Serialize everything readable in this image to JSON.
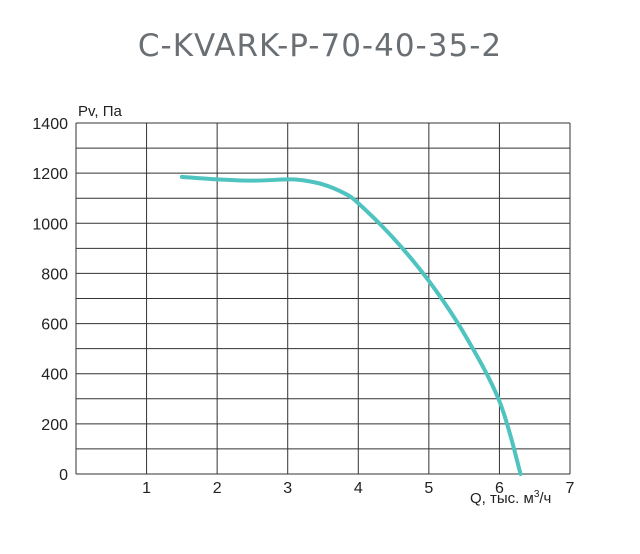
{
  "chart_data": {
    "type": "line",
    "title": "C-KVARK-P-70-40-35-2",
    "ylabel": "Pv, Па",
    "xlabel_prefix": "Q, тыс. м",
    "xlabel_sup": "3",
    "xlabel_suffix": "/ч",
    "xlim": [
      0,
      7
    ],
    "ylim": [
      0,
      1400
    ],
    "xticks": [
      "1",
      "2",
      "3",
      "4",
      "5",
      "6",
      "7"
    ],
    "yticks": [
      "0",
      "200",
      "400",
      "600",
      "800",
      "1000",
      "1200",
      "1400"
    ],
    "grid": true,
    "series": [
      {
        "color": "#4fc3bf",
        "x": [
          1.5,
          2.0,
          2.5,
          3.0,
          3.2,
          3.5,
          3.8,
          4.0,
          4.5,
          5.0,
          5.5,
          6.0,
          6.3
        ],
        "y": [
          1185,
          1175,
          1170,
          1175,
          1172,
          1155,
          1120,
          1080,
          940,
          770,
          560,
          290,
          0
        ]
      }
    ]
  }
}
